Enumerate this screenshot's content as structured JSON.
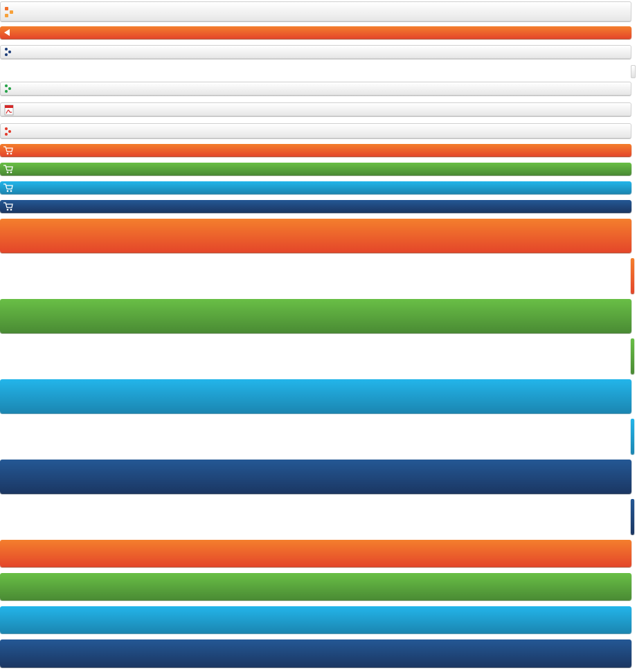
{
  "colors": {
    "orange": "#f05f2a",
    "green": "#5aa83d",
    "blue": "#1fa0d3",
    "navy": "#1f4a80",
    "gray": "#eeeeee"
  },
  "icons": {
    "dots_orange": "dots-orange-icon",
    "back_arrow": "back-arrow-icon",
    "dots_navy": "dots-navy-icon",
    "dots_green": "dots-green-icon",
    "pdf": "pdf-icon",
    "dots_red": "dots-red-icon",
    "cart": "cart-icon"
  }
}
